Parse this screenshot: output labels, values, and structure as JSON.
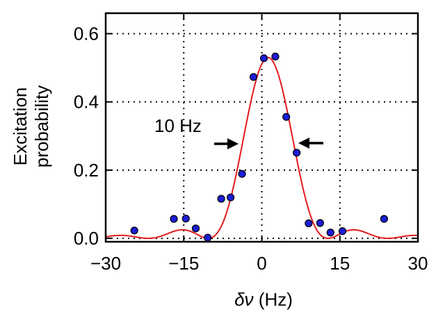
{
  "chart_data": {
    "type": "scatter",
    "xlabel_symbol": "δν",
    "xlabel_unit": "(Hz)",
    "ylabel_line1": "Excitation",
    "ylabel_line2": "probability",
    "xlim": [
      -30,
      30
    ],
    "ylim": [
      -0.01,
      0.66
    ],
    "xticks": [
      -30,
      -15,
      0,
      15,
      30
    ],
    "xtick_labels": [
      "−30",
      "−15",
      "0",
      "15",
      "30"
    ],
    "yticks": [
      0.0,
      0.2,
      0.4,
      0.6
    ],
    "ytick_labels": [
      "0.0",
      "0.2",
      "0.4",
      "0.6"
    ],
    "grid": "dotted",
    "annotation": "10 Hz",
    "annotation_fwhm": [
      -4.5,
      6.8
    ],
    "points": [
      {
        "x": -24.5,
        "y": 0.023
      },
      {
        "x": -16.9,
        "y": 0.057
      },
      {
        "x": -14.6,
        "y": 0.058
      },
      {
        "x": -12.7,
        "y": 0.029
      },
      {
        "x": -10.4,
        "y": 0.002
      },
      {
        "x": -7.8,
        "y": 0.116
      },
      {
        "x": -6.0,
        "y": 0.12
      },
      {
        "x": -3.8,
        "y": 0.189
      },
      {
        "x": -1.6,
        "y": 0.473
      },
      {
        "x": 0.4,
        "y": 0.528
      },
      {
        "x": 2.6,
        "y": 0.533
      },
      {
        "x": 4.7,
        "y": 0.356
      },
      {
        "x": 6.7,
        "y": 0.251
      },
      {
        "x": 9.0,
        "y": 0.044
      },
      {
        "x": 11.2,
        "y": 0.045
      },
      {
        "x": 13.2,
        "y": 0.017
      },
      {
        "x": 15.5,
        "y": 0.021
      },
      {
        "x": 23.5,
        "y": 0.057
      }
    ],
    "fit": {
      "peak": 0.53,
      "center": 1.2,
      "halfwidth_zero": 11.5
    },
    "point_color": "#1c1cd6",
    "fit_color": "#e41a1c"
  }
}
